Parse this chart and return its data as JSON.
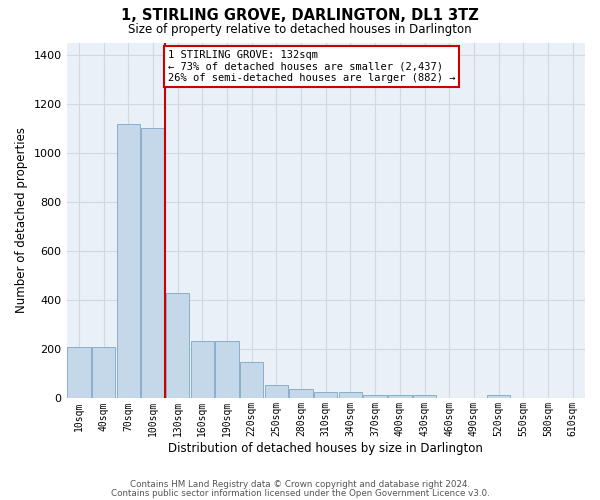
{
  "title": "1, STIRLING GROVE, DARLINGTON, DL1 3TZ",
  "subtitle": "Size of property relative to detached houses in Darlington",
  "xlabel": "Distribution of detached houses by size in Darlington",
  "ylabel": "Number of detached properties",
  "bar_color": "#c5d8ea",
  "bar_edge_color": "#8aafc8",
  "grid_color": "#d0d8e0",
  "background_color": "#eaf0f7",
  "reference_line_color": "#cc0000",
  "reference_line_x": 3,
  "annotation_text": "1 STIRLING GROVE: 132sqm\n← 73% of detached houses are smaller (2,437)\n26% of semi-detached houses are larger (882) →",
  "annotation_box_color": "#cc0000",
  "categories": [
    "10sqm",
    "40sqm",
    "70sqm",
    "100sqm",
    "130sqm",
    "160sqm",
    "190sqm",
    "220sqm",
    "250sqm",
    "280sqm",
    "310sqm",
    "340sqm",
    "370sqm",
    "400sqm",
    "430sqm",
    "460sqm",
    "490sqm",
    "520sqm",
    "550sqm",
    "580sqm",
    "610sqm"
  ],
  "values": [
    210,
    210,
    1120,
    1100,
    430,
    235,
    235,
    150,
    55,
    40,
    25,
    25,
    13,
    13,
    13,
    0,
    0,
    12,
    0,
    0,
    0
  ],
  "ylim": [
    0,
    1450
  ],
  "yticks": [
    0,
    200,
    400,
    600,
    800,
    1000,
    1200,
    1400
  ],
  "footer1": "Contains HM Land Registry data © Crown copyright and database right 2024.",
  "footer2": "Contains public sector information licensed under the Open Government Licence v3.0."
}
